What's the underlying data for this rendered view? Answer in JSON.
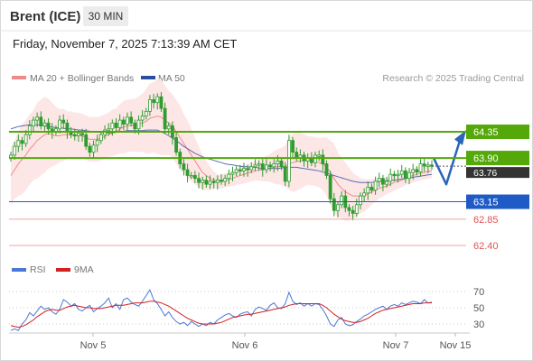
{
  "header": {
    "instrument": "Brent (ICE)",
    "timeframe": "30 MIN",
    "datetime": "Friday, November 7, 2025 7:13:39 AM CET"
  },
  "legend": {
    "bollinger_label": "MA 20 + Bollinger Bands",
    "ma50_label": "MA 50",
    "copyright": "Research © 2025 Trading Central",
    "rsi_label": "RSI",
    "rsi_ma_label": "9MA"
  },
  "colors": {
    "green": "#55a80a",
    "blue": "#1f5bc6",
    "red": "#e25252",
    "bollinger_fill": "#fde3e3",
    "ma20": "#f08a8a",
    "ma50": "#5b6fb0",
    "candle": "#2f9c2f",
    "rsi": "#4a78d6",
    "rsi_ma": "#d32020",
    "current_price": "#333333"
  },
  "chart_data": [
    {
      "type": "line",
      "name": "price",
      "x_labels": [
        "Nov 5",
        "Nov 6",
        "Nov 7",
        "Nov 15"
      ],
      "levels": [
        {
          "value": 64.35,
          "label": "64.35",
          "style": "green-box"
        },
        {
          "value": 63.9,
          "label": "63.90",
          "style": "green-box"
        },
        {
          "value": 63.76,
          "label": "63.76",
          "style": "current"
        },
        {
          "value": 63.15,
          "label": "63.15",
          "style": "blue-box"
        },
        {
          "value": 62.85,
          "label": "62.85",
          "style": "red-text"
        },
        {
          "value": 62.4,
          "label": "62.40",
          "style": "red-text"
        }
      ],
      "close": [
        63.95,
        64.1,
        64.2,
        64.15,
        64.3,
        64.45,
        64.55,
        64.6,
        64.45,
        64.5,
        64.4,
        64.35,
        64.4,
        64.55,
        64.5,
        64.35,
        64.3,
        64.28,
        64.32,
        64.3,
        64.1,
        64.0,
        64.12,
        64.2,
        64.3,
        64.38,
        64.4,
        64.5,
        64.42,
        64.55,
        64.48,
        64.6,
        64.5,
        64.4,
        64.55,
        64.62,
        64.7,
        64.9,
        64.85,
        64.95,
        64.75,
        64.4,
        64.45,
        64.25,
        64.0,
        63.8,
        63.7,
        63.6,
        63.6,
        63.55,
        63.48,
        63.52,
        63.45,
        63.5,
        63.48,
        63.52,
        63.5,
        63.55,
        63.62,
        63.65,
        63.7,
        63.68,
        63.72,
        63.7,
        63.75,
        63.78,
        63.8,
        63.7,
        63.78,
        63.75,
        63.8,
        63.85,
        63.75,
        63.5,
        64.2,
        64.0,
        63.9,
        63.95,
        63.85,
        63.9,
        63.82,
        63.95,
        63.95,
        63.8,
        63.6,
        63.2,
        63.0,
        63.1,
        63.25,
        63.05,
        63.0,
        62.95,
        63.1,
        63.25,
        63.3,
        63.4,
        63.35,
        63.5,
        63.55,
        63.45,
        63.5,
        63.62,
        63.6,
        63.62,
        63.68,
        63.55,
        63.65,
        63.7,
        63.66,
        63.8,
        63.76,
        63.78,
        63.76
      ],
      "ma20": [
        63.6,
        63.7,
        63.8,
        63.88,
        63.95,
        64.05,
        64.12,
        64.2,
        64.25,
        64.3,
        64.32,
        64.3,
        64.28,
        64.28,
        64.3,
        64.3,
        64.3,
        64.28,
        64.28,
        64.28,
        64.25,
        64.22,
        64.22,
        64.22,
        64.24,
        64.27,
        64.3,
        64.33,
        64.35,
        64.4,
        64.43,
        64.45,
        64.46,
        64.46,
        64.48,
        64.5,
        64.53,
        64.58,
        64.6,
        64.62,
        64.6,
        64.55,
        64.5,
        64.45,
        64.35,
        64.25,
        64.15,
        64.05,
        63.95,
        63.85,
        63.75,
        63.65,
        63.6,
        63.55,
        63.52,
        63.5,
        63.5,
        63.52,
        63.53,
        63.55,
        63.58,
        63.6,
        63.62,
        63.64,
        63.66,
        63.68,
        63.69,
        63.7,
        63.72,
        63.73,
        63.74,
        63.75,
        63.76,
        63.76,
        63.8,
        63.82,
        63.84,
        63.85,
        63.86,
        63.86,
        63.85,
        63.84,
        63.82,
        63.8,
        63.75,
        63.65,
        63.55,
        63.45,
        63.38,
        63.32,
        63.28,
        63.25,
        63.25,
        63.25,
        63.26,
        63.28,
        63.32,
        63.35,
        63.38,
        63.4,
        63.42,
        63.45,
        63.48,
        63.5,
        63.52,
        63.55,
        63.58,
        63.6,
        63.62,
        63.64,
        63.65,
        63.67,
        63.68
      ],
      "ma50": [
        64.4,
        64.42,
        64.44,
        64.45,
        64.46,
        64.47,
        64.47,
        64.47,
        64.46,
        64.45,
        64.44,
        64.43,
        64.42,
        64.42,
        64.41,
        64.4,
        64.4,
        64.39,
        64.38,
        64.38,
        64.37,
        64.36,
        64.35,
        64.34,
        64.34,
        64.33,
        64.33,
        64.33,
        64.34,
        64.35,
        64.36,
        64.37,
        64.37,
        64.37,
        64.37,
        64.37,
        64.38,
        64.38,
        64.38,
        64.38,
        64.35,
        64.32,
        64.28,
        64.24,
        64.2,
        64.15,
        64.1,
        64.06,
        64.02,
        63.98,
        63.95,
        63.92,
        63.9,
        63.88,
        63.86,
        63.84,
        63.82,
        63.8,
        63.79,
        63.78,
        63.77,
        63.76,
        63.75,
        63.75,
        63.74,
        63.74,
        63.73,
        63.72,
        63.72,
        63.72,
        63.72,
        63.72,
        63.73,
        63.74,
        63.74,
        63.74,
        63.74,
        63.73,
        63.72,
        63.71,
        63.7,
        63.69,
        63.68,
        63.66,
        63.64,
        63.62,
        63.6,
        63.58,
        63.56,
        63.54,
        63.52,
        63.5,
        63.49,
        63.48,
        63.48,
        63.48,
        63.48,
        63.49,
        63.5,
        63.5,
        63.51,
        63.52,
        63.52,
        63.53,
        63.54,
        63.55,
        63.56,
        63.57,
        63.58,
        63.59,
        63.6,
        63.61,
        63.62
      ],
      "bollinger_width": [
        0.5,
        0.5,
        0.55,
        0.6,
        0.6,
        0.6,
        0.6,
        0.65,
        0.65,
        0.65,
        0.6,
        0.55,
        0.5,
        0.45,
        0.45,
        0.4,
        0.4,
        0.4,
        0.4,
        0.38,
        0.38,
        0.38,
        0.38,
        0.38,
        0.38,
        0.38,
        0.38,
        0.4,
        0.4,
        0.42,
        0.45,
        0.45,
        0.45,
        0.45,
        0.48,
        0.5,
        0.55,
        0.6,
        0.6,
        0.65,
        0.65,
        0.6,
        0.55,
        0.55,
        0.55,
        0.55,
        0.5,
        0.5,
        0.45,
        0.4,
        0.35,
        0.3,
        0.25,
        0.2,
        0.15,
        0.12,
        0.12,
        0.12,
        0.12,
        0.13,
        0.14,
        0.15,
        0.16,
        0.16,
        0.16,
        0.17,
        0.18,
        0.2,
        0.22,
        0.24,
        0.28,
        0.3,
        0.32,
        0.35,
        0.45,
        0.5,
        0.5,
        0.48,
        0.45,
        0.42,
        0.42,
        0.42,
        0.42,
        0.45,
        0.5,
        0.55,
        0.6,
        0.55,
        0.52,
        0.5,
        0.45,
        0.4,
        0.35,
        0.3,
        0.28,
        0.25,
        0.22,
        0.2,
        0.18,
        0.16,
        0.14,
        0.14,
        0.14,
        0.13,
        0.12,
        0.12,
        0.12,
        0.12,
        0.12,
        0.12,
        0.12,
        0.12,
        0.12
      ],
      "projection": [
        [
          63.78,
          63.68
        ],
        [
          63.8,
          63.45
        ],
        [
          64.35,
          64.35
        ]
      ]
    },
    {
      "type": "line",
      "name": "RSI",
      "ylim": [
        20,
        80
      ],
      "ticks": [
        30,
        50,
        70
      ],
      "rsi": [
        22,
        24,
        22,
        30,
        35,
        44,
        40,
        46,
        52,
        48,
        50,
        45,
        42,
        48,
        60,
        57,
        52,
        55,
        48,
        46,
        50,
        53,
        45,
        49,
        52,
        56,
        62,
        50,
        55,
        48,
        60,
        62,
        57,
        54,
        52,
        58,
        65,
        72,
        60,
        55,
        48,
        40,
        45,
        38,
        33,
        30,
        32,
        28,
        33,
        30,
        27,
        30,
        28,
        32,
        30,
        35,
        38,
        41,
        43,
        40,
        38,
        42,
        44,
        45,
        40,
        48,
        51,
        49,
        47,
        53,
        56,
        50,
        49,
        55,
        69,
        58,
        54,
        56,
        52,
        55,
        52,
        55,
        54,
        48,
        40,
        30,
        27,
        35,
        38,
        30,
        28,
        29,
        33,
        36,
        40,
        42,
        45,
        48,
        50,
        52,
        48,
        52,
        54,
        52,
        56,
        54,
        56,
        58,
        57,
        55,
        60,
        56,
        57
      ],
      "rsi_ma": [
        28,
        27,
        26,
        27,
        29,
        32,
        35,
        39,
        42,
        45,
        47,
        48,
        47,
        47,
        49,
        51,
        52,
        53,
        52,
        51,
        50,
        50,
        49,
        49,
        49,
        50,
        51,
        52,
        53,
        53,
        53,
        54,
        55,
        56,
        56,
        56,
        57,
        58,
        58,
        57,
        56,
        54,
        52,
        49,
        46,
        43,
        40,
        37,
        35,
        33,
        31,
        30,
        30,
        30,
        30,
        31,
        32,
        34,
        36,
        38,
        39,
        40,
        41,
        42,
        42,
        43,
        44,
        45,
        46,
        47,
        48,
        49,
        50,
        51,
        53,
        54,
        55,
        55,
        55,
        55,
        55,
        55,
        55,
        53,
        50,
        46,
        42,
        39,
        36,
        34,
        33,
        32,
        32,
        33,
        35,
        37,
        40,
        43,
        45,
        47,
        48,
        49,
        50,
        51,
        52,
        53,
        54,
        55,
        55,
        55,
        56,
        56,
        56
      ]
    }
  ]
}
